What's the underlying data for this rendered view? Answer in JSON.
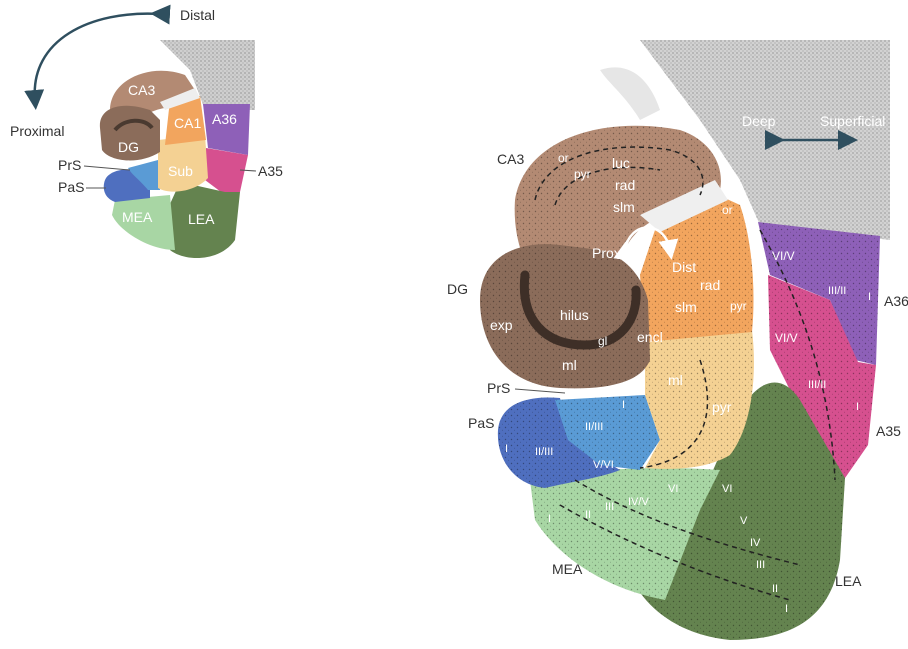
{
  "small_diagram": {
    "directions": {
      "distal": "Distal",
      "proximal": "Proximal"
    },
    "regions": {
      "ca3": "CA3",
      "ca1": "CA1",
      "dg": "DG",
      "sub": "Sub",
      "a36": "A36",
      "a35": "A35",
      "prs": "PrS",
      "pas": "PaS",
      "mea": "MEA",
      "lea": "LEA"
    }
  },
  "large_diagram": {
    "axis": {
      "deep": "Deep",
      "superficial": "Superficial"
    },
    "regions": {
      "ca3": "CA3",
      "dg": "DG",
      "prs": "PrS",
      "pas": "PaS",
      "mea": "MEA",
      "lea": "LEA",
      "a36": "A36",
      "a35": "A35"
    },
    "ca3_layers": {
      "or": "or",
      "pyr": "pyr",
      "luc": "luc",
      "rad": "rad",
      "slm": "slm"
    },
    "flow": {
      "prox": "Prox",
      "dist": "Dist"
    },
    "ca1_layers": {
      "or": "or",
      "rad": "rad",
      "slm": "slm",
      "pyr": "pyr"
    },
    "dg_layers": {
      "exp": "exp",
      "hilus": "hilus",
      "gl": "gl",
      "encl": "encl",
      "ml": "ml"
    },
    "sub_layers": {
      "ml": "ml",
      "pyr": "pyr"
    },
    "a36_layers": {
      "vi_v": "VI/V",
      "iii_ii": "III/II",
      "i": "I"
    },
    "a35_layers": {
      "vi_v": "VI/V",
      "iii_ii": "III/II",
      "i": "I"
    },
    "prs_layers": {
      "i": "I",
      "ii_iii": "II/III",
      "v_vi": "V/VI"
    },
    "pas_layers": {
      "i": "I",
      "ii_iii": "II/III"
    },
    "mea_layers": {
      "i": "I",
      "ii": "II",
      "iii": "III",
      "iv_v": "IV/V",
      "vi": "VI"
    },
    "lea_layers": {
      "vi": "VI",
      "v": "V",
      "iv": "IV",
      "iii": "III",
      "ii": "II",
      "i": "I"
    }
  },
  "colors": {
    "ca3": "#b38a73",
    "dg": "#8b6c5a",
    "ca1": "#f2a55e",
    "sub": "#f4d193",
    "a36": "#8e60b8",
    "a35": "#d6508f",
    "prs": "#5a9bd5",
    "pas": "#4f6fbf",
    "mea": "#a8d6a4",
    "lea": "#64834f",
    "cortex_gray": "#bdbdbd"
  }
}
